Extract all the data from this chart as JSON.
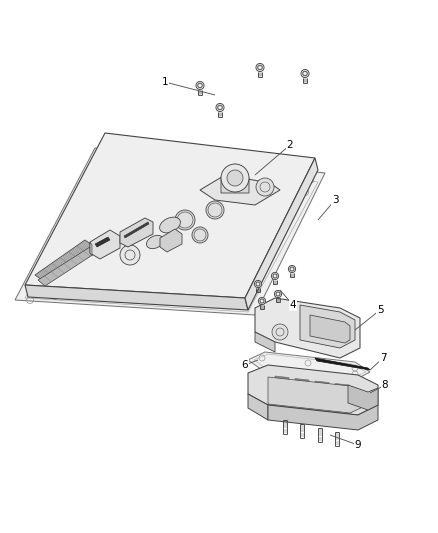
{
  "bg_color": "#ffffff",
  "line_color": "#444444",
  "label_color": "#000000",
  "label_fontsize": 7.5,
  "figsize": [
    4.38,
    5.33
  ],
  "dpi": 100,
  "plate_face": "#f2f2f2",
  "plate_side": "#d5d5d5",
  "gasket_color": "#e8e8e8",
  "bracket_color": "#e0e0e0",
  "dark_part": "#c0c0c0"
}
